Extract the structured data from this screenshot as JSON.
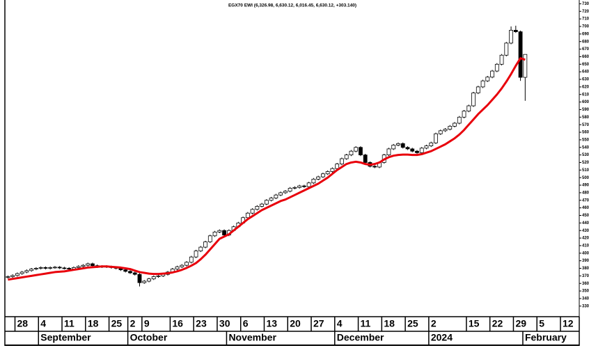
{
  "chart_data": {
    "type": "candlestick",
    "title": "EGX70 EWI (6,326.98, 6,630.12, 6,016.45, 6,630.12, +303.140)",
    "categories": [
      null,
      null,
      "28",
      null,
      null,
      null,
      null,
      "4",
      null,
      null,
      null,
      null,
      "11",
      null,
      null,
      null,
      null,
      "18",
      null,
      null,
      null,
      null,
      "25",
      null,
      null,
      null,
      "2",
      null,
      null,
      "9",
      null,
      null,
      null,
      null,
      null,
      "16",
      null,
      null,
      null,
      null,
      "23",
      null,
      null,
      null,
      null,
      "30",
      null,
      null,
      null,
      null,
      "6",
      null,
      null,
      null,
      null,
      "13",
      null,
      null,
      null,
      null,
      "20",
      null,
      null,
      null,
      null,
      "27",
      null,
      null,
      null,
      null,
      "4",
      null,
      null,
      null,
      null,
      "11",
      null,
      null,
      null,
      null,
      "18",
      null,
      null,
      null,
      null,
      "25",
      null,
      null,
      null,
      null,
      "2",
      null,
      null,
      null,
      null,
      null,
      null,
      null,
      "15",
      null,
      null,
      null,
      null,
      "22",
      null,
      null,
      null,
      null,
      "29",
      null,
      null,
      null,
      null,
      "5",
      null,
      null,
      null,
      null,
      "12",
      null,
      null,
      null
    ],
    "month_labels": [
      null,
      null,
      null,
      null,
      null,
      null,
      null,
      "September",
      null,
      null,
      null,
      null,
      null,
      null,
      null,
      null,
      null,
      null,
      null,
      null,
      null,
      null,
      null,
      null,
      null,
      null,
      "October",
      null,
      null,
      null,
      null,
      null,
      null,
      null,
      null,
      null,
      null,
      null,
      null,
      null,
      null,
      null,
      null,
      null,
      null,
      null,
      null,
      "November",
      null,
      null,
      null,
      null,
      null,
      null,
      null,
      null,
      null,
      null,
      null,
      null,
      null,
      null,
      null,
      null,
      null,
      null,
      null,
      null,
      null,
      null,
      "December",
      null,
      null,
      null,
      null,
      null,
      null,
      null,
      null,
      null,
      null,
      null,
      null,
      null,
      null,
      null,
      null,
      null,
      null,
      null,
      "2024",
      null,
      null,
      null,
      null,
      null,
      null,
      null,
      null,
      null,
      null,
      null,
      null,
      null,
      null,
      null,
      null,
      null,
      null,
      null,
      "February",
      null,
      null,
      null,
      null,
      null,
      null,
      null,
      null,
      null,
      null,
      null
    ],
    "open": [
      3680,
      3690,
      3705,
      3730,
      3750,
      3770,
      3790,
      3800,
      3810,
      3800,
      3810,
      3815,
      3805,
      3800,
      3790,
      3810,
      3825,
      3840,
      3860,
      3835,
      3820,
      3825,
      3820,
      3810,
      3800,
      3780,
      3760,
      3740,
      3720,
      3610,
      3630,
      3660,
      3690,
      3700,
      3720,
      3750,
      3790,
      3820,
      3840,
      3880,
      3950,
      4030,
      4080,
      4150,
      4230,
      4280,
      4300,
      4240,
      4300,
      4350,
      4400,
      4470,
      4530,
      4580,
      4620,
      4650,
      4700,
      4730,
      4770,
      4800,
      4820,
      4860,
      4870,
      4890,
      4880,
      4930,
      4980,
      5010,
      5050,
      5080,
      5120,
      5180,
      5250,
      5300,
      5350,
      5400,
      5300,
      5200,
      5150,
      5140,
      5200,
      5300,
      5380,
      5430,
      5450,
      5400,
      5380,
      5350,
      5330,
      5390,
      5420,
      5460,
      5580,
      5620,
      5640,
      5680,
      5720,
      5800,
      5880,
      5950,
      6120,
      6200,
      6280,
      6330,
      6410,
      6500,
      6620,
      6780,
      6950,
      6930,
      6326.98,
      null,
      null,
      null,
      null,
      null,
      null,
      null,
      null,
      null,
      null,
      null
    ],
    "high": [
      3705,
      3720,
      3745,
      3765,
      3785,
      3805,
      3815,
      3825,
      3825,
      3825,
      3830,
      3830,
      3820,
      3815,
      3825,
      3840,
      3855,
      3875,
      3875,
      3850,
      3840,
      3840,
      3835,
      3825,
      3815,
      3795,
      3775,
      3755,
      3735,
      3645,
      3675,
      3705,
      3715,
      3735,
      3765,
      3805,
      3835,
      3855,
      3895,
      3965,
      4045,
      4095,
      4165,
      4245,
      4295,
      4315,
      4315,
      4315,
      4365,
      4415,
      4485,
      4545,
      4595,
      4635,
      4665,
      4715,
      4745,
      4785,
      4815,
      4835,
      4875,
      4885,
      4905,
      4905,
      4945,
      4995,
      5025,
      5065,
      5095,
      5135,
      5195,
      5265,
      5315,
      5365,
      5415,
      5415,
      5315,
      5215,
      5165,
      5215,
      5315,
      5395,
      5445,
      5465,
      5465,
      5415,
      5395,
      5365,
      5405,
      5435,
      5475,
      5595,
      5635,
      5655,
      5695,
      5735,
      5815,
      5895,
      5965,
      6135,
      6215,
      6295,
      6345,
      6425,
      6515,
      6635,
      6795,
      7000,
      7010,
      6945,
      6630.12,
      null,
      null,
      null,
      null,
      null,
      null,
      null,
      null,
      null,
      null,
      null
    ],
    "low": [
      3665,
      3675,
      3690,
      3715,
      3735,
      3755,
      3775,
      3785,
      3785,
      3785,
      3795,
      3790,
      3785,
      3775,
      3775,
      3795,
      3810,
      3825,
      3820,
      3805,
      3805,
      3805,
      3795,
      3785,
      3765,
      3745,
      3725,
      3705,
      3560,
      3595,
      3615,
      3645,
      3675,
      3685,
      3705,
      3735,
      3775,
      3805,
      3825,
      3865,
      3935,
      4015,
      4065,
      4135,
      4215,
      4265,
      4225,
      4225,
      4285,
      4335,
      4385,
      4455,
      4515,
      4565,
      4605,
      4635,
      4685,
      4715,
      4755,
      4785,
      4805,
      4845,
      4855,
      4865,
      4865,
      4915,
      4965,
      4995,
      5035,
      5065,
      5105,
      5165,
      5235,
      5285,
      5335,
      5285,
      5185,
      5135,
      5125,
      5125,
      5185,
      5285,
      5365,
      5415,
      5385,
      5365,
      5335,
      5315,
      5315,
      5375,
      5405,
      5445,
      5565,
      5605,
      5625,
      5665,
      5705,
      5785,
      5865,
      5935,
      6105,
      6185,
      6265,
      6315,
      6395,
      6485,
      6605,
      6765,
      6915,
      6280,
      6016.45,
      null,
      null,
      null,
      null,
      null,
      null,
      null,
      null,
      null,
      null,
      null
    ],
    "close": [
      3690,
      3705,
      3730,
      3750,
      3770,
      3790,
      3800,
      3810,
      3800,
      3810,
      3815,
      3805,
      3800,
      3790,
      3810,
      3825,
      3840,
      3860,
      3835,
      3820,
      3825,
      3820,
      3810,
      3800,
      3780,
      3760,
      3740,
      3720,
      3610,
      3630,
      3660,
      3690,
      3700,
      3720,
      3750,
      3790,
      3820,
      3840,
      3880,
      3950,
      4030,
      4080,
      4150,
      4230,
      4280,
      4300,
      4240,
      4300,
      4350,
      4400,
      4470,
      4530,
      4580,
      4620,
      4650,
      4700,
      4730,
      4770,
      4800,
      4820,
      4860,
      4870,
      4890,
      4880,
      4930,
      4980,
      5010,
      5050,
      5080,
      5120,
      5180,
      5250,
      5300,
      5350,
      5400,
      5300,
      5200,
      5150,
      5140,
      5200,
      5300,
      5380,
      5430,
      5450,
      5400,
      5380,
      5350,
      5330,
      5390,
      5420,
      5460,
      5580,
      5620,
      5640,
      5680,
      5720,
      5800,
      5880,
      5950,
      6120,
      6200,
      6280,
      6330,
      6410,
      6500,
      6620,
      6780,
      6950,
      6930,
      6326.98,
      6630.12,
      null,
      null,
      null,
      null,
      null,
      null,
      null,
      null,
      null,
      null,
      null
    ],
    "ma": {
      "color": "#e8000b",
      "values": [
        3650,
        3660,
        3670,
        3680,
        3690,
        3700,
        3710,
        3720,
        3730,
        3740,
        3750,
        3755,
        3760,
        3770,
        3780,
        3790,
        3800,
        3810,
        3815,
        3820,
        3825,
        3825,
        3820,
        3815,
        3810,
        3800,
        3790,
        3770,
        3750,
        3740,
        3730,
        3725,
        3725,
        3730,
        3735,
        3745,
        3760,
        3780,
        3805,
        3835,
        3870,
        3920,
        3980,
        4050,
        4120,
        4190,
        4220,
        4250,
        4300,
        4350,
        4400,
        4450,
        4490,
        4530,
        4570,
        4600,
        4630,
        4660,
        4690,
        4710,
        4740,
        4770,
        4800,
        4830,
        4860,
        4890,
        4920,
        4960,
        5000,
        5050,
        5100,
        5140,
        5180,
        5200,
        5210,
        5200,
        5180,
        5170,
        5180,
        5200,
        5240,
        5270,
        5290,
        5300,
        5305,
        5305,
        5300,
        5300,
        5310,
        5330,
        5350,
        5380,
        5410,
        5440,
        5480,
        5520,
        5570,
        5630,
        5700,
        5770,
        5840,
        5900,
        5960,
        6030,
        6100,
        6180,
        6270,
        6370,
        6480,
        6580,
        6560,
        null,
        null,
        null,
        null,
        null,
        null,
        null,
        null,
        null,
        null,
        null
      ]
    },
    "up_color": "#ffffff",
    "down_color": "#000000",
    "ylim": [
      3160,
      7350
    ],
    "yticks": [
      3300,
      3400,
      3500,
      3600,
      3700,
      3800,
      3900,
      4000,
      4100,
      4200,
      4300,
      4400,
      4500,
      4600,
      4700,
      4800,
      4900,
      5000,
      5100,
      5200,
      5300,
      5400,
      5500,
      5600,
      5700,
      5800,
      5900,
      6000,
      6100,
      6200,
      6300,
      6400,
      6500,
      6600,
      6700,
      6800,
      6900,
      7000,
      7100,
      7200,
      7300
    ]
  }
}
